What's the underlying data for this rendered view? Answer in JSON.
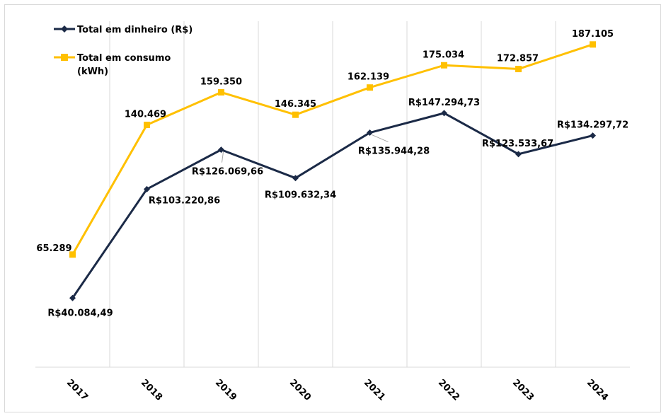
{
  "chart_data": {
    "type": "line",
    "title": "",
    "xlabel": "",
    "ylabel": "",
    "categories": [
      "2017",
      "2018",
      "2019",
      "2020",
      "2021",
      "2022",
      "2023",
      "2024"
    ],
    "ylim": [
      0,
      210000
    ],
    "grid": "vertical",
    "legend_position": "top-left",
    "colors": {
      "money": "#1B2A47",
      "consumption": "#FFC000",
      "grid": "#d9d9d9"
    },
    "series": [
      {
        "name": "Total em dinheiro (R$)",
        "marker": "diamond",
        "values": [
          40084.49,
          103220.86,
          126069.66,
          109632.34,
          135944.28,
          147294.73,
          123533.67,
          134297.72
        ],
        "labels": [
          "R$40.084,49",
          "R$103.220,86",
          "R$126.069,66",
          "R$109.632,34",
          "R$135.944,28",
          "R$147.294,73",
          "R$123.533,67",
          "R$134.297,72"
        ]
      },
      {
        "name": "Total em consumo (kWh)",
        "name_lines": [
          "Total em consumo",
          "(kWh)"
        ],
        "marker": "square",
        "values": [
          65289,
          140469,
          159350,
          146345,
          162139,
          175034,
          172857,
          187105
        ],
        "labels": [
          "65.289",
          "140.469",
          "159.350",
          "146.345",
          "162.139",
          "175.034",
          "172.857",
          "187.105"
        ]
      }
    ]
  }
}
